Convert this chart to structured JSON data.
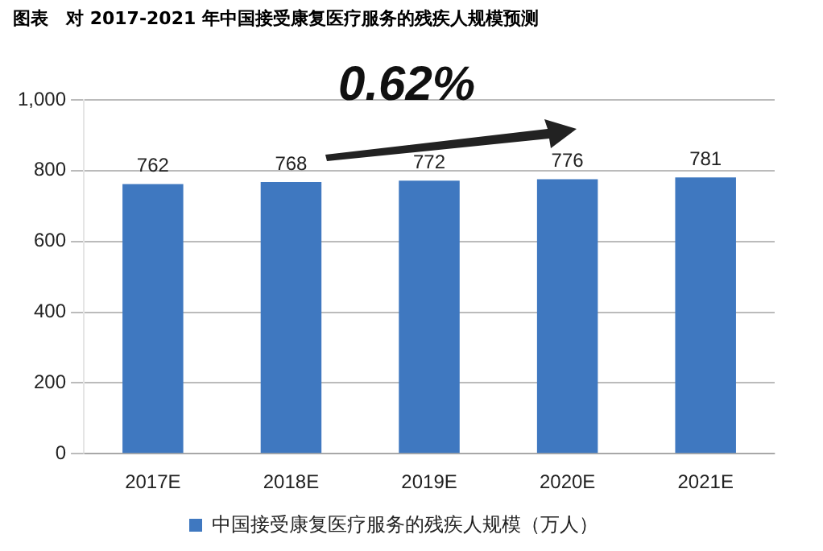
{
  "chart_data": {
    "type": "bar",
    "title": "图表　对 2017-2021 年中国接受康复医疗服务的残疾人规模预测",
    "categories": [
      "2017E",
      "2018E",
      "2019E",
      "2020E",
      "2021E"
    ],
    "series": [
      {
        "name": "中国接受康复医疗服务的残疾人规模（万人）",
        "color": "#3f78c0",
        "values": [
          762,
          768,
          772,
          776,
          781
        ]
      }
    ],
    "ylim": [
      0,
      1000
    ],
    "yticks": [
      0,
      200,
      400,
      600,
      800,
      {
        "value": 1000,
        "label": "1,000"
      }
    ],
    "grid": "y",
    "legend": "bottom",
    "data_labels": true,
    "annotations": [
      "0.62%"
    ]
  }
}
